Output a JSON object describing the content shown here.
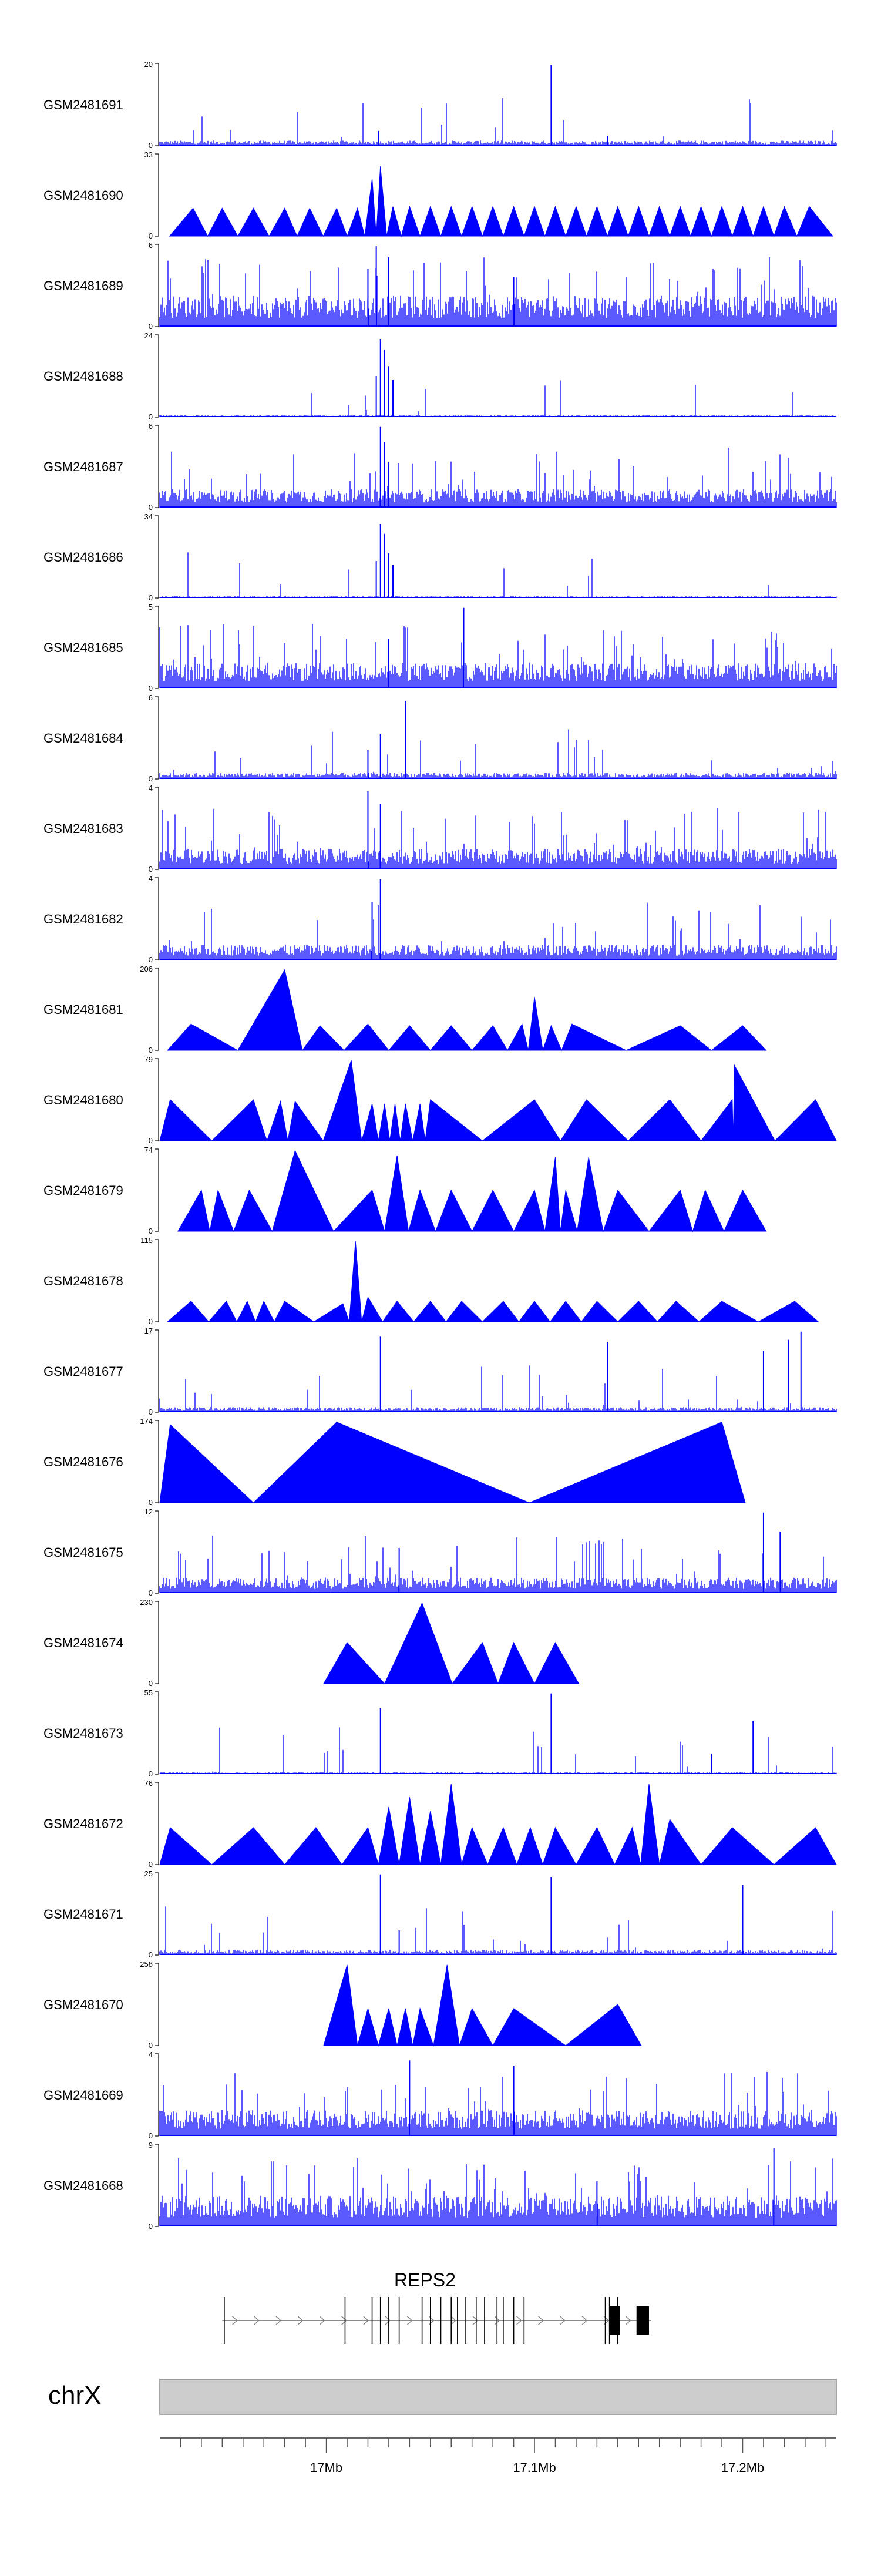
{
  "chart_data": {
    "type": "area",
    "title": "",
    "xlabel": "",
    "ylabel": "",
    "chromosome": "chrX",
    "xlim_mb": [
      16.92,
      17.245
    ],
    "x_ticks": [
      {
        "value": 17.0,
        "label": "17Mb"
      },
      {
        "value": 17.1,
        "label": "17.1Mb"
      },
      {
        "value": 17.2,
        "label": "17.2Mb"
      }
    ],
    "colors": {
      "signal": "#0000ff",
      "axis": "#333333",
      "ideogram": "#cccccc",
      "gene": "#000000"
    },
    "tracks": [
      {
        "name": "GSM2481691",
        "ymax": "20",
        "ymin": "0",
        "style": "noise",
        "baseline": 0.05,
        "density": 0.25,
        "spikes": [
          [
            17.108,
            0.98
          ],
          [
            17.025,
            0.18
          ],
          [
            17.135,
            0.12
          ]
        ]
      },
      {
        "name": "GSM2481690",
        "ymax": "33",
        "ymin": "0",
        "style": "peaks",
        "peaks": [
          [
            16.936,
            0.34
          ],
          [
            16.95,
            0.34
          ],
          [
            16.965,
            0.34
          ],
          [
            16.98,
            0.34
          ],
          [
            16.992,
            0.34
          ],
          [
            17.005,
            0.34
          ],
          [
            17.015,
            0.34
          ],
          [
            17.022,
            0.7
          ],
          [
            17.026,
            0.85
          ],
          [
            17.032,
            0.36
          ],
          [
            17.04,
            0.36
          ],
          [
            17.05,
            0.36
          ],
          [
            17.06,
            0.36
          ],
          [
            17.07,
            0.36
          ],
          [
            17.08,
            0.36
          ],
          [
            17.09,
            0.36
          ],
          [
            17.1,
            0.36
          ],
          [
            17.11,
            0.36
          ],
          [
            17.12,
            0.36
          ],
          [
            17.13,
            0.36
          ],
          [
            17.14,
            0.36
          ],
          [
            17.15,
            0.36
          ],
          [
            17.16,
            0.36
          ],
          [
            17.17,
            0.36
          ],
          [
            17.18,
            0.36
          ],
          [
            17.19,
            0.36
          ],
          [
            17.2,
            0.36
          ],
          [
            17.21,
            0.36
          ],
          [
            17.22,
            0.36
          ],
          [
            17.232,
            0.36
          ]
        ]
      },
      {
        "name": "GSM2481689",
        "ymax": "6",
        "ymin": "0",
        "style": "noise",
        "baseline": 0.3,
        "density": 0.8,
        "spikes": [
          [
            17.024,
            0.98
          ],
          [
            17.03,
            0.85
          ],
          [
            17.02,
            0.7
          ],
          [
            17.09,
            0.6
          ]
        ]
      },
      {
        "name": "GSM2481688",
        "ymax": "24",
        "ymin": "0",
        "style": "noise",
        "baseline": 0.02,
        "density": 0.15,
        "spikes": [
          [
            17.026,
            0.95
          ],
          [
            17.028,
            0.82
          ],
          [
            17.03,
            0.62
          ],
          [
            17.032,
            0.45
          ],
          [
            17.024,
            0.5
          ]
        ]
      },
      {
        "name": "GSM2481687",
        "ymax": "6",
        "ymin": "0",
        "style": "noise",
        "baseline": 0.18,
        "density": 0.6,
        "spikes": [
          [
            17.026,
            0.98
          ],
          [
            17.028,
            0.8
          ],
          [
            17.03,
            0.55
          ]
        ]
      },
      {
        "name": "GSM2481686",
        "ymax": "34",
        "ymin": "0",
        "style": "noise",
        "baseline": 0.02,
        "density": 0.12,
        "spikes": [
          [
            17.026,
            0.9
          ],
          [
            17.028,
            0.78
          ],
          [
            17.03,
            0.55
          ],
          [
            17.032,
            0.4
          ],
          [
            17.024,
            0.45
          ]
        ]
      },
      {
        "name": "GSM2481685",
        "ymax": "5",
        "ymin": "0",
        "style": "noise",
        "baseline": 0.25,
        "density": 0.7,
        "spikes": [
          [
            17.066,
            0.98
          ],
          [
            17.03,
            0.6
          ]
        ]
      },
      {
        "name": "GSM2481684",
        "ymax": "6",
        "ymin": "0",
        "style": "noise",
        "baseline": 0.06,
        "density": 0.4,
        "spikes": [
          [
            17.038,
            0.95
          ],
          [
            17.026,
            0.55
          ],
          [
            17.02,
            0.35
          ]
        ]
      },
      {
        "name": "GSM2481683",
        "ymax": "4",
        "ymin": "0",
        "style": "noise",
        "baseline": 0.2,
        "density": 0.6,
        "spikes": [
          [
            17.02,
            0.95
          ],
          [
            17.026,
            0.8
          ]
        ]
      },
      {
        "name": "GSM2481682",
        "ymax": "4",
        "ymin": "0",
        "style": "noise",
        "baseline": 0.15,
        "density": 0.55,
        "spikes": [
          [
            17.026,
            0.98
          ],
          [
            17.022,
            0.7
          ]
        ]
      },
      {
        "name": "GSM2481681",
        "ymax": "206",
        "ymin": "0",
        "style": "peaks",
        "peaks": [
          [
            16.935,
            0.32
          ],
          [
            16.98,
            0.98
          ],
          [
            16.997,
            0.3
          ],
          [
            17.02,
            0.32
          ],
          [
            17.04,
            0.3
          ],
          [
            17.06,
            0.3
          ],
          [
            17.08,
            0.3
          ],
          [
            17.094,
            0.32
          ],
          [
            17.1,
            0.65
          ],
          [
            17.108,
            0.3
          ],
          [
            17.118,
            0.32
          ],
          [
            17.17,
            0.3
          ],
          [
            17.2,
            0.3
          ]
        ]
      },
      {
        "name": "GSM2481680",
        "ymax": "79",
        "ymin": "0",
        "style": "peaks",
        "peaks": [
          [
            16.925,
            0.5
          ],
          [
            16.965,
            0.5
          ],
          [
            16.978,
            0.48
          ],
          [
            16.985,
            0.48
          ],
          [
            17.012,
            0.98
          ],
          [
            17.022,
            0.45
          ],
          [
            17.028,
            0.45
          ],
          [
            17.033,
            0.45
          ],
          [
            17.038,
            0.45
          ],
          [
            17.045,
            0.45
          ],
          [
            17.05,
            0.5
          ],
          [
            17.1,
            0.5
          ],
          [
            17.125,
            0.5
          ],
          [
            17.165,
            0.5
          ],
          [
            17.195,
            0.5
          ],
          [
            17.196,
            0.92
          ],
          [
            17.235,
            0.5
          ]
        ]
      },
      {
        "name": "GSM2481679",
        "ymax": "74",
        "ymin": "0",
        "style": "peaks",
        "peaks": [
          [
            16.94,
            0.5
          ],
          [
            16.948,
            0.5
          ],
          [
            16.963,
            0.5
          ],
          [
            16.985,
            0.98
          ],
          [
            17.022,
            0.5
          ],
          [
            17.034,
            0.92
          ],
          [
            17.045,
            0.5
          ],
          [
            17.06,
            0.5
          ],
          [
            17.08,
            0.5
          ],
          [
            17.1,
            0.5
          ],
          [
            17.11,
            0.9
          ],
          [
            17.115,
            0.5
          ],
          [
            17.126,
            0.9
          ],
          [
            17.14,
            0.5
          ],
          [
            17.17,
            0.5
          ],
          [
            17.182,
            0.5
          ],
          [
            17.2,
            0.5
          ]
        ]
      },
      {
        "name": "GSM2481678",
        "ymax": "115",
        "ymin": "0",
        "style": "peaks",
        "peaks": [
          [
            16.935,
            0.25
          ],
          [
            16.952,
            0.25
          ],
          [
            16.962,
            0.25
          ],
          [
            16.97,
            0.25
          ],
          [
            16.98,
            0.25
          ],
          [
            17.008,
            0.22
          ],
          [
            17.014,
            0.98
          ],
          [
            17.02,
            0.3
          ],
          [
            17.034,
            0.25
          ],
          [
            17.05,
            0.25
          ],
          [
            17.065,
            0.25
          ],
          [
            17.085,
            0.25
          ],
          [
            17.1,
            0.25
          ],
          [
            17.115,
            0.25
          ],
          [
            17.13,
            0.25
          ],
          [
            17.15,
            0.25
          ],
          [
            17.168,
            0.25
          ],
          [
            17.19,
            0.25
          ],
          [
            17.225,
            0.25
          ]
        ]
      },
      {
        "name": "GSM2481677",
        "ymax": "17",
        "ymin": "0",
        "style": "noise",
        "baseline": 0.05,
        "density": 0.35,
        "spikes": [
          [
            17.026,
            0.92
          ],
          [
            17.135,
            0.85
          ],
          [
            17.228,
            0.98
          ],
          [
            17.222,
            0.88
          ],
          [
            17.21,
            0.75
          ]
        ]
      },
      {
        "name": "GSM2481676",
        "ymax": "174",
        "ymin": "0",
        "style": "peaks",
        "peaks": [
          [
            16.925,
            0.95
          ],
          [
            17.005,
            0.98
          ],
          [
            17.19,
            0.98
          ]
        ]
      },
      {
        "name": "GSM2481675",
        "ymax": "12",
        "ymin": "0",
        "style": "noise",
        "baseline": 0.15,
        "density": 0.55,
        "spikes": [
          [
            17.21,
            0.98
          ],
          [
            17.218,
            0.75
          ],
          [
            17.035,
            0.55
          ]
        ]
      },
      {
        "name": "GSM2481674",
        "ymax": "230",
        "ymin": "0",
        "style": "peaks",
        "peaks": [
          [
            17.01,
            0.5
          ],
          [
            17.046,
            0.98
          ],
          [
            17.075,
            0.5
          ],
          [
            17.09,
            0.5
          ],
          [
            17.11,
            0.5
          ]
        ]
      },
      {
        "name": "GSM2481673",
        "ymax": "55",
        "ymin": "0",
        "style": "noise",
        "baseline": 0.02,
        "density": 0.2,
        "spikes": [
          [
            17.026,
            0.8
          ],
          [
            17.108,
            0.98
          ],
          [
            17.205,
            0.65
          ],
          [
            17.185,
            0.25
          ]
        ]
      },
      {
        "name": "GSM2481672",
        "ymax": "76",
        "ymin": "0",
        "style": "peaks",
        "peaks": [
          [
            16.925,
            0.45
          ],
          [
            16.965,
            0.45
          ],
          [
            16.995,
            0.45
          ],
          [
            17.02,
            0.45
          ],
          [
            17.03,
            0.7
          ],
          [
            17.04,
            0.82
          ],
          [
            17.05,
            0.65
          ],
          [
            17.06,
            0.98
          ],
          [
            17.07,
            0.45
          ],
          [
            17.085,
            0.45
          ],
          [
            17.098,
            0.45
          ],
          [
            17.11,
            0.45
          ],
          [
            17.13,
            0.45
          ],
          [
            17.147,
            0.45
          ],
          [
            17.155,
            0.98
          ],
          [
            17.165,
            0.55
          ],
          [
            17.195,
            0.45
          ],
          [
            17.235,
            0.45
          ]
        ]
      },
      {
        "name": "GSM2481671",
        "ymax": "25",
        "ymin": "0",
        "style": "noise",
        "baseline": 0.05,
        "density": 0.35,
        "spikes": [
          [
            17.026,
            0.98
          ],
          [
            17.108,
            0.95
          ],
          [
            17.2,
            0.85
          ],
          [
            17.035,
            0.3
          ]
        ]
      },
      {
        "name": "GSM2481670",
        "ymax": "258",
        "ymin": "0",
        "style": "peaks",
        "peaks": [
          [
            17.01,
            0.98
          ],
          [
            17.02,
            0.45
          ],
          [
            17.03,
            0.45
          ],
          [
            17.038,
            0.45
          ],
          [
            17.045,
            0.45
          ],
          [
            17.058,
            0.98
          ],
          [
            17.07,
            0.45
          ],
          [
            17.09,
            0.45
          ],
          [
            17.14,
            0.5
          ]
        ]
      },
      {
        "name": "GSM2481669",
        "ymax": "4",
        "ymin": "0",
        "style": "noise",
        "baseline": 0.25,
        "density": 0.7,
        "spikes": [
          [
            17.04,
            0.92
          ],
          [
            17.09,
            0.85
          ]
        ]
      },
      {
        "name": "GSM2481668",
        "ymax": "9",
        "ymin": "0",
        "style": "noise",
        "baseline": 0.3,
        "density": 0.8,
        "spikes": [
          [
            17.215,
            0.95
          ],
          [
            17.13,
            0.55
          ]
        ]
      }
    ],
    "gene": {
      "name": "REPS2",
      "start_mb": 16.95,
      "end_mb": 17.156,
      "strand": "+",
      "exons_mb": [
        16.951,
        17.009,
        17.022,
        17.026,
        17.03,
        17.035,
        17.046,
        17.05,
        17.055,
        17.06,
        17.063,
        17.067,
        17.072,
        17.076,
        17.082,
        17.085,
        17.09,
        17.095,
        17.134,
        17.136,
        17.14
      ],
      "utr_blocks_mb": [
        [
          17.136,
          17.141
        ],
        [
          17.149,
          17.155
        ]
      ]
    }
  }
}
